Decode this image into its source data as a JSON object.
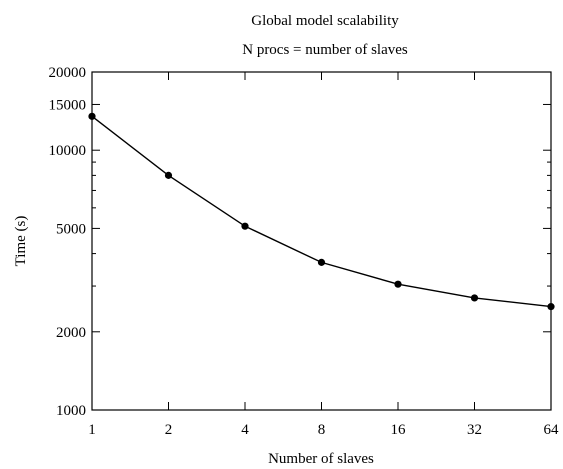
{
  "chart_data": {
    "type": "line",
    "title": "Global model scalability",
    "subtitle": "N procs = number of slaves",
    "xlabel": "Number of slaves",
    "ylabel": "Time (s)",
    "x_scale": "log2",
    "y_scale": "log",
    "xlim": [
      1,
      64
    ],
    "ylim": [
      1000,
      20000
    ],
    "x_ticks": [
      1,
      2,
      4,
      8,
      16,
      32,
      64
    ],
    "x_tick_labels": [
      "1",
      "2",
      "4",
      "8",
      "16",
      "32",
      "64"
    ],
    "y_ticks": [
      1000,
      2000,
      5000,
      10000,
      15000,
      20000
    ],
    "y_tick_labels": [
      "1000",
      "2000",
      "5000",
      "10000",
      "15000",
      "20000"
    ],
    "grid": false,
    "series": [
      {
        "color": "#000000",
        "marker": "filled-circle",
        "x": [
          1,
          2,
          4,
          8,
          16,
          32,
          64
        ],
        "y": [
          13500,
          8000,
          5100,
          3700,
          3050,
          2700,
          2500
        ]
      }
    ]
  }
}
